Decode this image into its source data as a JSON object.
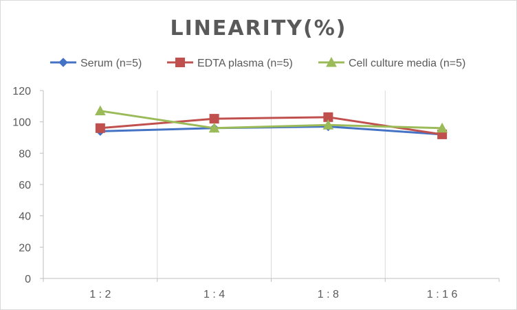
{
  "chart_data": {
    "type": "line",
    "title": "LINEARITY(%)",
    "categories": [
      "1:2",
      "1:4",
      "1:8",
      "1:16"
    ],
    "series": [
      {
        "name": "Serum (n=5)",
        "values": [
          94,
          96,
          97,
          92
        ],
        "color": "#4472c4",
        "marker": "diamond"
      },
      {
        "name": "EDTA plasma (n=5)",
        "values": [
          96,
          102,
          103,
          92
        ],
        "color": "#c0504d",
        "marker": "square"
      },
      {
        "name": "Cell culture media (n=5)",
        "values": [
          107,
          96,
          98,
          96
        ],
        "color": "#9bbb59",
        "marker": "triangle"
      }
    ],
    "ylim": [
      0,
      120
    ],
    "yticks": [
      0,
      20,
      40,
      60,
      80,
      100,
      120
    ],
    "xlabel": "",
    "ylabel": "",
    "legend": "top",
    "grid": "vertical"
  }
}
